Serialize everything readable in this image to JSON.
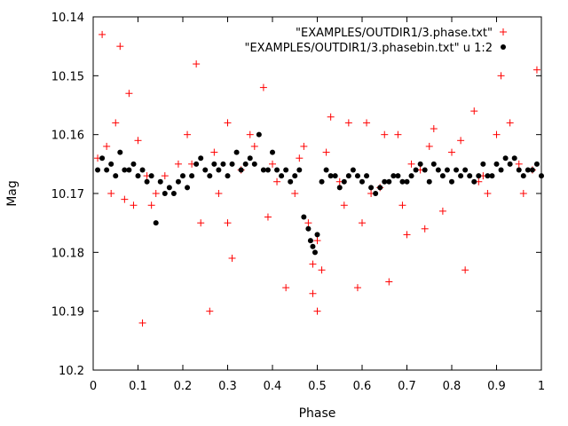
{
  "chart_data": {
    "type": "scatter",
    "xlabel": "Phase",
    "ylabel": "Mag",
    "xlim": [
      0,
      1
    ],
    "ylim": [
      10.2,
      10.14
    ],
    "y_inverted": true,
    "x_ticks": [
      0,
      0.1,
      0.2,
      0.3,
      0.4,
      0.5,
      0.6,
      0.7,
      0.8,
      0.9,
      1
    ],
    "x_tick_labels": [
      "0",
      "0.1",
      "0.2",
      "0.3",
      "0.4",
      "0.5",
      "0.6",
      "0.7",
      "0.8",
      "0.9",
      "1"
    ],
    "y_ticks": [
      10.14,
      10.15,
      10.16,
      10.17,
      10.18,
      10.19,
      10.2
    ],
    "y_tick_labels": [
      "10.14",
      "10.15",
      "10.16",
      "10.17",
      "10.18",
      "10.19",
      "10.2"
    ],
    "grid": false,
    "legend_position": "top-right",
    "series": [
      {
        "name": "\"EXAMPLES/OUTDIR1/3.phase.txt\"",
        "marker": "plus",
        "color": "#ff0000",
        "x": [
          0.02,
          0.03,
          0.05,
          0.06,
          0.08,
          0.09,
          0.1,
          0.11,
          0.12,
          0.14,
          0.19,
          0.21,
          0.23,
          0.24,
          0.26,
          0.27,
          0.3,
          0.31,
          0.33,
          0.35,
          0.38,
          0.39,
          0.43,
          0.45,
          0.47,
          0.48,
          0.49,
          0.49,
          0.5,
          0.5,
          0.51,
          0.52,
          0.53,
          0.55,
          0.57,
          0.59,
          0.62,
          0.65,
          0.66,
          0.69,
          0.71,
          0.74,
          0.76,
          0.8,
          0.83,
          0.85,
          0.88,
          0.91,
          0.93,
          0.95,
          0.98,
          0.99,
          0.01,
          0.04,
          0.07,
          0.13,
          0.16,
          0.22,
          0.28,
          0.36,
          0.41,
          0.46,
          0.56,
          0.61,
          0.64,
          0.68,
          0.73,
          0.78,
          0.82,
          0.87,
          0.9,
          0.96,
          0.3,
          0.4,
          0.6,
          0.7,
          0.75,
          0.86
        ],
        "y": [
          10.143,
          10.162,
          10.158,
          10.145,
          10.153,
          10.172,
          10.161,
          10.192,
          10.167,
          10.17,
          10.165,
          10.16,
          10.148,
          10.175,
          10.19,
          10.163,
          10.158,
          10.181,
          10.166,
          10.16,
          10.152,
          10.174,
          10.186,
          10.17,
          10.162,
          10.175,
          10.182,
          10.187,
          10.19,
          10.178,
          10.183,
          10.163,
          10.157,
          10.168,
          10.158,
          10.186,
          10.17,
          10.16,
          10.185,
          10.172,
          10.165,
          10.176,
          10.159,
          10.163,
          10.183,
          10.156,
          10.17,
          10.15,
          10.158,
          10.165,
          10.166,
          10.149,
          10.164,
          10.17,
          10.171,
          10.172,
          10.167,
          10.165,
          10.17,
          10.162,
          10.168,
          10.164,
          10.172,
          10.158,
          10.169,
          10.16,
          10.166,
          10.173,
          10.161,
          10.167,
          10.16,
          10.17,
          10.175,
          10.165,
          10.175,
          10.177,
          10.162,
          10.168
        ]
      },
      {
        "name": "\"EXAMPLES/OUTDIR1/3.phasebin.txt\" u 1:2",
        "marker": "filled-circle",
        "color": "#000000",
        "x": [
          0.01,
          0.02,
          0.03,
          0.04,
          0.05,
          0.06,
          0.07,
          0.08,
          0.09,
          0.1,
          0.11,
          0.12,
          0.13,
          0.14,
          0.15,
          0.16,
          0.17,
          0.18,
          0.19,
          0.2,
          0.21,
          0.22,
          0.23,
          0.24,
          0.25,
          0.26,
          0.27,
          0.28,
          0.29,
          0.3,
          0.31,
          0.32,
          0.33,
          0.34,
          0.35,
          0.36,
          0.37,
          0.38,
          0.39,
          0.4,
          0.41,
          0.42,
          0.43,
          0.44,
          0.45,
          0.46,
          0.47,
          0.48,
          0.485,
          0.49,
          0.495,
          0.5,
          0.51,
          0.52,
          0.53,
          0.54,
          0.55,
          0.56,
          0.57,
          0.58,
          0.59,
          0.6,
          0.61,
          0.62,
          0.63,
          0.64,
          0.65,
          0.66,
          0.67,
          0.68,
          0.69,
          0.7,
          0.71,
          0.72,
          0.73,
          0.74,
          0.75,
          0.76,
          0.77,
          0.78,
          0.79,
          0.8,
          0.81,
          0.82,
          0.83,
          0.84,
          0.85,
          0.86,
          0.87,
          0.88,
          0.89,
          0.9,
          0.91,
          0.92,
          0.93,
          0.94,
          0.95,
          0.96,
          0.97,
          0.98,
          0.99,
          1.0
        ],
        "y": [
          10.166,
          10.164,
          10.166,
          10.165,
          10.167,
          10.163,
          10.166,
          10.166,
          10.165,
          10.167,
          10.166,
          10.168,
          10.167,
          10.175,
          10.168,
          10.17,
          10.169,
          10.17,
          10.168,
          10.167,
          10.169,
          10.167,
          10.165,
          10.164,
          10.166,
          10.167,
          10.165,
          10.166,
          10.165,
          10.167,
          10.165,
          10.163,
          10.166,
          10.165,
          10.164,
          10.165,
          10.16,
          10.166,
          10.166,
          10.163,
          10.166,
          10.167,
          10.166,
          10.168,
          10.167,
          10.166,
          10.174,
          10.176,
          10.178,
          10.179,
          10.18,
          10.177,
          10.168,
          10.166,
          10.167,
          10.167,
          10.169,
          10.168,
          10.167,
          10.166,
          10.167,
          10.168,
          10.167,
          10.169,
          10.17,
          10.169,
          10.168,
          10.168,
          10.167,
          10.167,
          10.168,
          10.168,
          10.167,
          10.166,
          10.165,
          10.166,
          10.168,
          10.165,
          10.166,
          10.167,
          10.166,
          10.168,
          10.166,
          10.167,
          10.166,
          10.167,
          10.168,
          10.167,
          10.165,
          10.167,
          10.167,
          10.165,
          10.166,
          10.164,
          10.165,
          10.164,
          10.166,
          10.167,
          10.166,
          10.166,
          10.165,
          10.167
        ]
      }
    ]
  }
}
